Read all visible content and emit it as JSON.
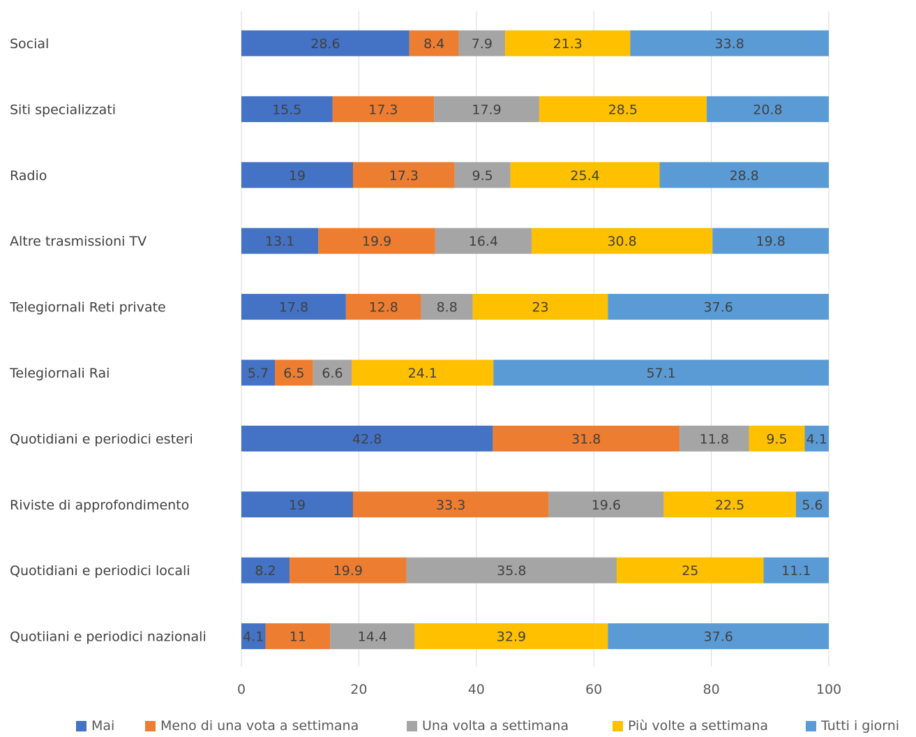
{
  "chart_data": {
    "type": "bar",
    "orientation": "horizontal",
    "stacked": true,
    "categories": [
      "Social",
      "Siti specializzati",
      "Radio",
      "Altre trasmissioni TV",
      "Telegiornali Reti private",
      "Telegiornali Rai",
      "Quotidiani e periodici esteri",
      "Riviste di approfondimento",
      "Quotidiani e periodici locali",
      "Quotiiani e periodici nazionali"
    ],
    "series": [
      {
        "name": "Mai",
        "color": "#4472C4",
        "values": [
          28.6,
          15.5,
          19,
          13.1,
          17.8,
          5.7,
          42.8,
          19,
          8.2,
          4.1
        ]
      },
      {
        "name": "Meno di una vota a settimana",
        "color": "#ED7D31",
        "values": [
          8.4,
          17.3,
          17.3,
          19.9,
          12.8,
          6.5,
          31.8,
          33.3,
          19.9,
          11
        ]
      },
      {
        "name": "Una volta a settimana",
        "color": "#A5A5A5",
        "values": [
          7.9,
          17.9,
          9.5,
          16.4,
          8.8,
          6.6,
          11.8,
          19.6,
          35.8,
          14.4
        ]
      },
      {
        "name": "Più volte a settimana",
        "color": "#FFC000",
        "values": [
          21.3,
          28.5,
          25.4,
          30.8,
          23,
          24.1,
          9.5,
          22.5,
          25,
          32.9
        ]
      },
      {
        "name": "Tutti i giorni",
        "color": "#5B9BD5",
        "values": [
          33.8,
          20.8,
          28.8,
          19.8,
          37.6,
          57.1,
          4.1,
          5.6,
          11.1,
          37.6
        ]
      }
    ],
    "x_ticks": [
      "0",
      "20",
      "40",
      "60",
      "80",
      "100"
    ],
    "xlim": [
      0,
      100
    ],
    "data_labels": true,
    "grid": "vertical",
    "legend_position": "bottom",
    "title": "",
    "xlabel": "",
    "ylabel": ""
  }
}
